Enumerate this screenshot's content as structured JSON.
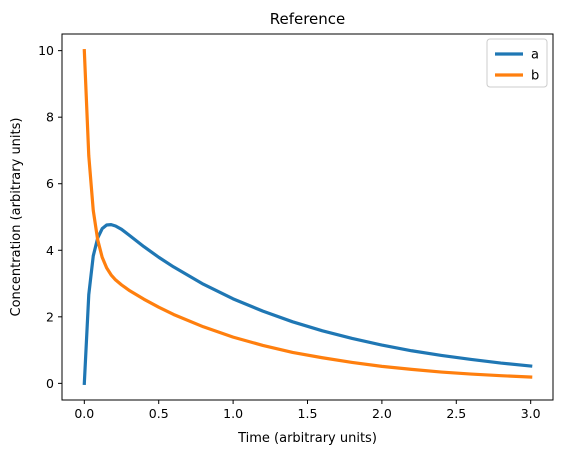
{
  "chart_data": {
    "type": "line",
    "title": "Reference",
    "xlabel": "Time (arbitrary units)",
    "ylabel": "Concentration (arbitrary units)",
    "xlim": [
      -0.15,
      3.15
    ],
    "ylim": [
      -0.5,
      10.5
    ],
    "xticks": [
      0.0,
      0.5,
      1.0,
      1.5,
      2.0,
      2.5,
      3.0
    ],
    "xtick_labels": [
      "0.0",
      "0.5",
      "1.0",
      "1.5",
      "2.0",
      "2.5",
      "3.0"
    ],
    "yticks": [
      0,
      2,
      4,
      6,
      8,
      10
    ],
    "ytick_labels": [
      "0",
      "2",
      "4",
      "6",
      "8",
      "10"
    ],
    "grid": false,
    "legend": {
      "position": "top-right",
      "entries": [
        "a",
        "b"
      ]
    },
    "series": [
      {
        "name": "a",
        "color": "#1f77b4",
        "x": [
          0.0,
          0.03,
          0.06,
          0.09,
          0.12,
          0.15,
          0.18,
          0.21,
          0.25,
          0.3,
          0.4,
          0.5,
          0.6,
          0.8,
          1.0,
          1.2,
          1.4,
          1.6,
          1.8,
          2.0,
          2.2,
          2.4,
          2.6,
          2.8,
          3.0
        ],
        "y": [
          0.0,
          2.67,
          3.83,
          4.37,
          4.65,
          4.76,
          4.77,
          4.73,
          4.63,
          4.46,
          4.11,
          3.79,
          3.5,
          2.98,
          2.54,
          2.17,
          1.85,
          1.58,
          1.35,
          1.15,
          0.98,
          0.84,
          0.72,
          0.61,
          0.52
        ]
      },
      {
        "name": "b",
        "color": "#ff7f0e",
        "x": [
          0.0,
          0.03,
          0.06,
          0.09,
          0.12,
          0.15,
          0.18,
          0.21,
          0.25,
          0.3,
          0.4,
          0.5,
          0.6,
          0.8,
          1.0,
          1.2,
          1.4,
          1.6,
          1.8,
          2.0,
          2.2,
          2.4,
          2.6,
          2.8,
          3.0
        ],
        "y": [
          10.0,
          6.84,
          5.2,
          4.31,
          3.79,
          3.47,
          3.26,
          3.11,
          2.96,
          2.8,
          2.53,
          2.29,
          2.07,
          1.7,
          1.39,
          1.14,
          0.93,
          0.77,
          0.63,
          0.51,
          0.42,
          0.34,
          0.28,
          0.23,
          0.19
        ]
      }
    ]
  }
}
